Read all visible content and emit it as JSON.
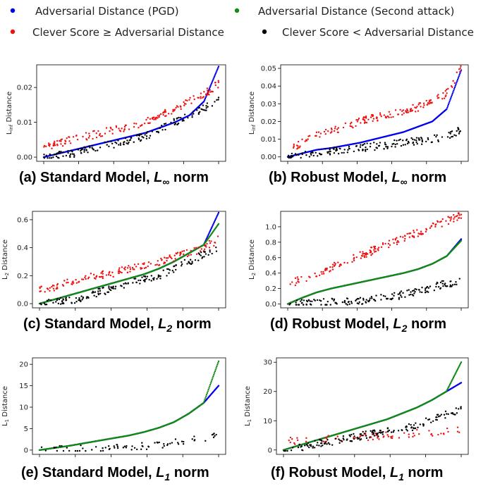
{
  "legend": [
    {
      "label": "Adversarial Distance (PGD)",
      "color": "#0000ee"
    },
    {
      "label": "Adversarial Distance (Second attack)",
      "color": "#138a13"
    },
    {
      "label": "Clever Score ≥ Adversarial Distance",
      "color": "#ee1111"
    },
    {
      "label": "Clever Score < Adversarial Distance",
      "color": "#000000"
    }
  ],
  "chart_data": [
    {
      "type": "scatter",
      "caption": {
        "prefix": "(a) Standard Model, ",
        "math": "L",
        "sub": "∞",
        "suffix": " norm"
      },
      "ylabel": {
        "main": "L",
        "sub": "inf",
        "rest": " Distance"
      },
      "yticks": [
        "0.00",
        "0.01",
        "0.02"
      ],
      "yticks_values": [
        0,
        0.01,
        0.02
      ],
      "ylim": [
        -0.0012,
        0.0265
      ],
      "n_points": 300,
      "series": [
        {
          "name": "Adversarial Distance (PGD)",
          "values": [
            0.0,
            0.001,
            0.002,
            0.003,
            0.004,
            0.005,
            0.006,
            0.007,
            0.0085,
            0.01,
            0.012,
            0.016,
            0.026
          ]
        },
        {
          "name": "Clever Score ≥ Adversarial Distance",
          "values": [
            0.003,
            0.004,
            0.005,
            0.006,
            0.007,
            0.008,
            0.009,
            0.01,
            0.012,
            0.014,
            0.016,
            0.018,
            0.021
          ]
        },
        {
          "name": "Clever Score < Adversarial Distance",
          "values": [
            0.0,
            0.0005,
            0.001,
            0.002,
            0.003,
            0.004,
            0.005,
            0.006,
            0.008,
            0.01,
            0.012,
            0.014,
            0.016
          ]
        }
      ]
    },
    {
      "type": "scatter",
      "caption": {
        "prefix": "(b) Robust Model, ",
        "math": "L",
        "sub": "∞",
        "suffix": " norm"
      },
      "ylabel": {
        "main": "L",
        "sub": "inf",
        "rest": " Distance"
      },
      "yticks": [
        "0.00",
        "0.01",
        "0.02",
        "0.03",
        "0.04",
        "0.05"
      ],
      "yticks_values": [
        0,
        0.01,
        0.02,
        0.03,
        0.04,
        0.05
      ],
      "ylim": [
        -0.0025,
        0.052
      ],
      "n_points": 300,
      "series": [
        {
          "name": "Adversarial Distance (PGD)",
          "values": [
            0.0,
            0.002,
            0.004,
            0.005,
            0.0065,
            0.008,
            0.01,
            0.012,
            0.014,
            0.017,
            0.02,
            0.027,
            0.049
          ]
        },
        {
          "name": "Clever Score ≥ Adversarial Distance",
          "values": [
            0.004,
            0.008,
            0.012,
            0.015,
            0.017,
            0.02,
            0.022,
            0.024,
            0.026,
            0.028,
            0.031,
            0.036,
            0.05
          ]
        },
        {
          "name": "Clever Score < Adversarial Distance",
          "values": [
            0.0,
            0.001,
            0.002,
            0.003,
            0.004,
            0.005,
            0.006,
            0.007,
            0.008,
            0.009,
            0.01,
            0.012,
            0.015
          ]
        }
      ]
    },
    {
      "type": "scatter",
      "caption": {
        "prefix": "(c) Standard Model, ",
        "math": "L",
        "sub": "2",
        "suffix": " norm"
      },
      "ylabel": {
        "main": "L",
        "sub": "2",
        "rest": " Distance"
      },
      "yticks": [
        "0.0",
        "0.2",
        "0.4",
        "0.6"
      ],
      "yticks_values": [
        0,
        0.2,
        0.4,
        0.6
      ],
      "ylim": [
        -0.03,
        0.66
      ],
      "n_points": 300,
      "series": [
        {
          "name": "Adversarial Distance (PGD)",
          "values": [
            0.0,
            0.03,
            0.06,
            0.09,
            0.12,
            0.15,
            0.18,
            0.21,
            0.25,
            0.3,
            0.36,
            0.42,
            0.65
          ]
        },
        {
          "name": "Adversarial Distance (Second attack)",
          "values": [
            0.0,
            0.03,
            0.06,
            0.09,
            0.12,
            0.15,
            0.18,
            0.21,
            0.25,
            0.3,
            0.36,
            0.42,
            0.57
          ]
        },
        {
          "name": "Clever Score ≥ Adversarial Distance",
          "values": [
            0.1,
            0.12,
            0.15,
            0.18,
            0.2,
            0.22,
            0.25,
            0.28,
            0.3,
            0.33,
            0.36,
            0.4,
            0.46
          ]
        },
        {
          "name": "Clever Score < Adversarial Distance",
          "values": [
            0.0,
            0.01,
            0.02,
            0.05,
            0.08,
            0.11,
            0.14,
            0.17,
            0.2,
            0.25,
            0.3,
            0.35,
            0.39
          ]
        }
      ]
    },
    {
      "type": "scatter",
      "caption": {
        "prefix": "(d) Robust Model, ",
        "math": "L",
        "sub": "2",
        "suffix": " norm"
      },
      "ylabel": {
        "main": "L",
        "sub": "2",
        "rest": " Distance"
      },
      "yticks": [
        "0.0",
        "0.2",
        "0.4",
        "0.6",
        "0.8",
        "1.0"
      ],
      "yticks_values": [
        0,
        0.2,
        0.4,
        0.6,
        0.8,
        1.0
      ],
      "ylim": [
        -0.05,
        1.2
      ],
      "n_points": 300,
      "series": [
        {
          "name": "Adversarial Distance (PGD)",
          "values": [
            0.0,
            0.08,
            0.15,
            0.2,
            0.24,
            0.28,
            0.32,
            0.36,
            0.4,
            0.45,
            0.52,
            0.62,
            0.84
          ]
        },
        {
          "name": "Adversarial Distance (Second attack)",
          "values": [
            0.0,
            0.08,
            0.15,
            0.2,
            0.24,
            0.28,
            0.32,
            0.36,
            0.4,
            0.45,
            0.52,
            0.62,
            0.82
          ]
        },
        {
          "name": "Clever Score ≥ Adversarial Distance",
          "values": [
            0.25,
            0.35,
            0.45,
            0.55,
            0.65,
            0.75,
            0.85,
            0.95,
            1.05,
            1.15
          ]
        },
        {
          "name": "Clever Score < Adversarial Distance",
          "values": [
            0.0,
            0.01,
            0.02,
            0.03,
            0.05,
            0.08,
            0.12,
            0.18,
            0.25,
            0.3
          ]
        }
      ]
    },
    {
      "type": "scatter",
      "caption": {
        "prefix": "(e) Standard Model, ",
        "math": "L",
        "sub": "1",
        "suffix": " norm"
      },
      "ylabel": {
        "main": "L",
        "sub": "1",
        "rest": " Distance"
      },
      "yticks": [
        "0",
        "5",
        "10",
        "15",
        "20"
      ],
      "yticks_values": [
        0,
        5,
        10,
        15,
        20
      ],
      "ylim": [
        -1.0,
        21.5
      ],
      "n_points": 300,
      "series": [
        {
          "name": "Adversarial Distance (PGD)",
          "values": [
            0.0,
            0.5,
            1.0,
            1.6,
            2.2,
            2.8,
            3.4,
            4.2,
            5.2,
            6.5,
            8.5,
            11.0,
            15.0
          ]
        },
        {
          "name": "Adversarial Distance (Second attack)",
          "values": [
            0.0,
            0.5,
            1.0,
            1.6,
            2.2,
            2.8,
            3.4,
            4.2,
            5.2,
            6.5,
            8.5,
            11.0,
            20.7
          ]
        },
        {
          "name": "Clever Score < Adversarial Distance",
          "values": [
            0.0,
            0.2,
            0.5,
            1.0,
            2.0,
            3.2
          ]
        }
      ]
    },
    {
      "type": "scatter",
      "caption": {
        "prefix": "(f) Robust Model, ",
        "math": "L",
        "sub": "1",
        "suffix": " norm"
      },
      "ylabel": {
        "main": "L",
        "sub": "1",
        "rest": " Distance"
      },
      "yticks": [
        "0",
        "10",
        "20",
        "30"
      ],
      "yticks_values": [
        0,
        10,
        20,
        30
      ],
      "ylim": [
        -1.5,
        31.5
      ],
      "n_points": 300,
      "series": [
        {
          "name": "Adversarial Distance (PGD)",
          "values": [
            0.0,
            1.5,
            3.0,
            4.5,
            6.0,
            7.5,
            9.0,
            10.5,
            12.5,
            14.5,
            17.0,
            20.0,
            23.0
          ]
        },
        {
          "name": "Adversarial Distance (Second attack)",
          "values": [
            0.0,
            1.5,
            3.0,
            4.5,
            6.0,
            7.5,
            9.0,
            10.5,
            12.5,
            14.5,
            17.0,
            20.0,
            30.0
          ]
        },
        {
          "name": "Clever Score ≥ Adversarial Distance",
          "values": [
            3.0,
            4.0,
            5.5,
            6.5
          ]
        },
        {
          "name": "Clever Score < Adversarial Distance",
          "values": [
            0.0,
            1.0,
            2.0,
            3.0,
            4.0,
            5.0,
            6.0,
            7.0,
            8.0,
            10.0,
            12.0,
            14.0
          ]
        }
      ]
    }
  ]
}
